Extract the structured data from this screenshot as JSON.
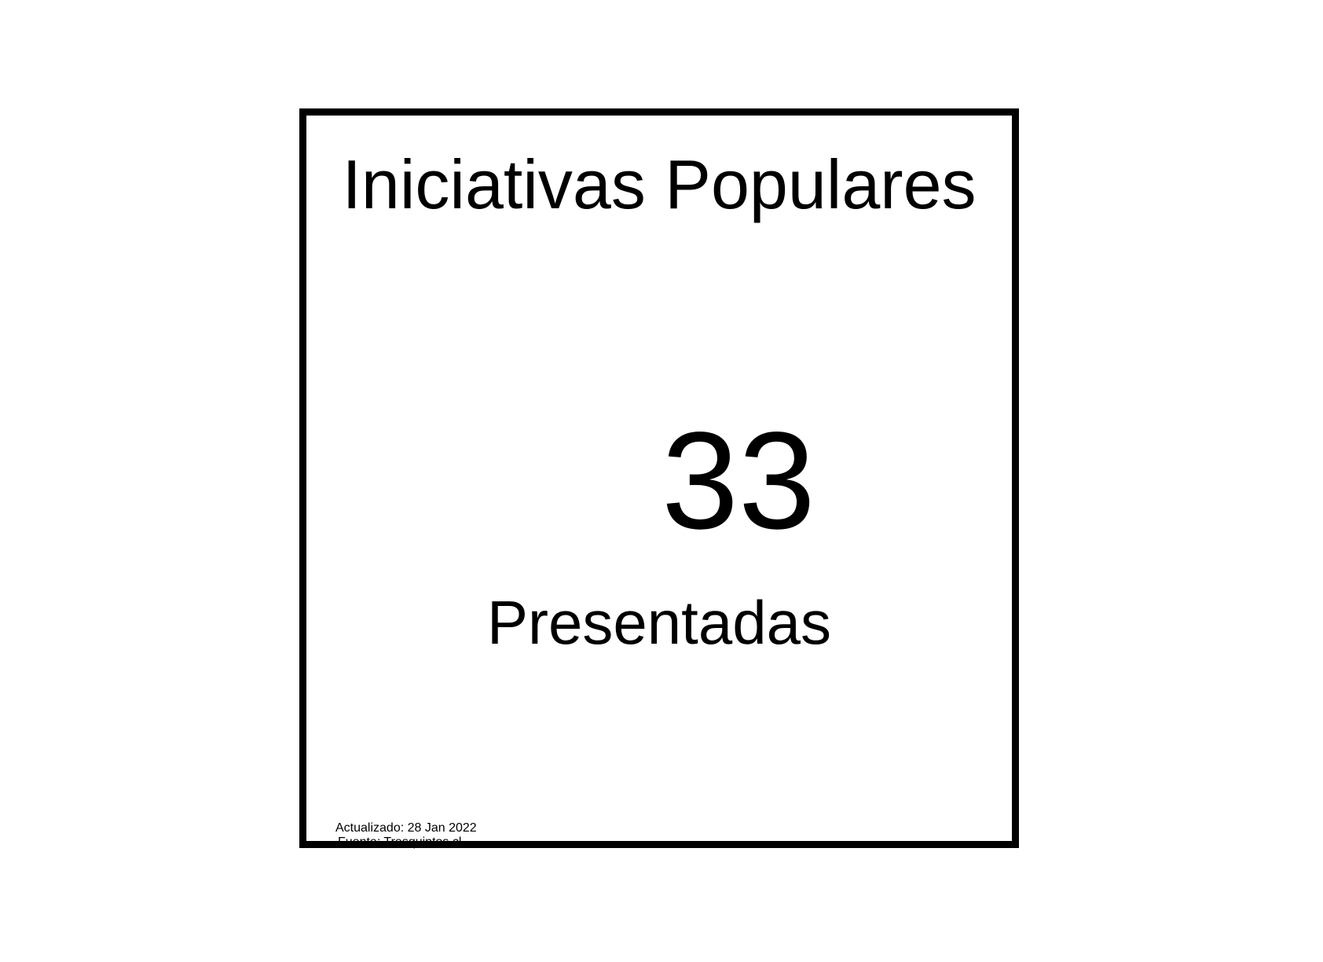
{
  "card": {
    "title": "Iniciativas Populares",
    "value": "33",
    "caption": "Presentadas",
    "updated": "Actualizado: 28 Jan 2022",
    "source": "Fuente: Tresquintos.cl"
  },
  "colors": {
    "background": "#ffffff",
    "border": "#000000",
    "text": "#000000"
  }
}
